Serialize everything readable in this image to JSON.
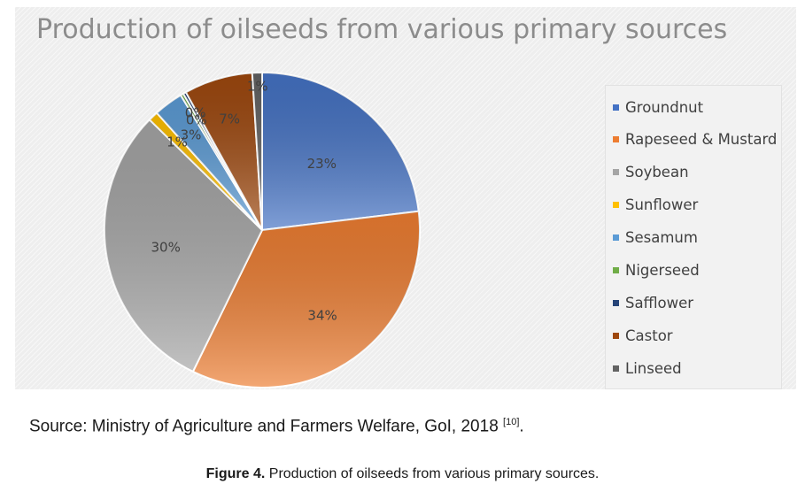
{
  "chart_data": {
    "type": "pie",
    "title": "Production of oilseeds from various primary sources",
    "categories": [
      "Groundnut",
      "Rapeseed & Mustard",
      "Soybean",
      "Sunflower",
      "Sesamum",
      "Nigerseed",
      "Safflower",
      "Castor",
      "Linseed"
    ],
    "values": [
      23,
      34,
      30,
      1,
      3,
      0,
      0,
      7,
      1
    ],
    "data_labels": [
      "23%",
      "34%",
      "30%",
      "1%",
      "3%",
      "0%",
      "0%",
      "7%",
      "1%"
    ],
    "colors": [
      "#4472c4",
      "#ed7d31",
      "#a5a5a5",
      "#ffc000",
      "#5b9bd5",
      "#70ad47",
      "#264478",
      "#9e480e",
      "#636363"
    ],
    "legend_position": "right",
    "grid": false
  },
  "source": {
    "text": "Source: Ministry of Agriculture and Farmers Welfare, GoI, 2018",
    "ref": "[10]",
    "end": "."
  },
  "caption": {
    "label": "Figure 4.",
    "text": "Production of oilseeds from various primary sources."
  }
}
